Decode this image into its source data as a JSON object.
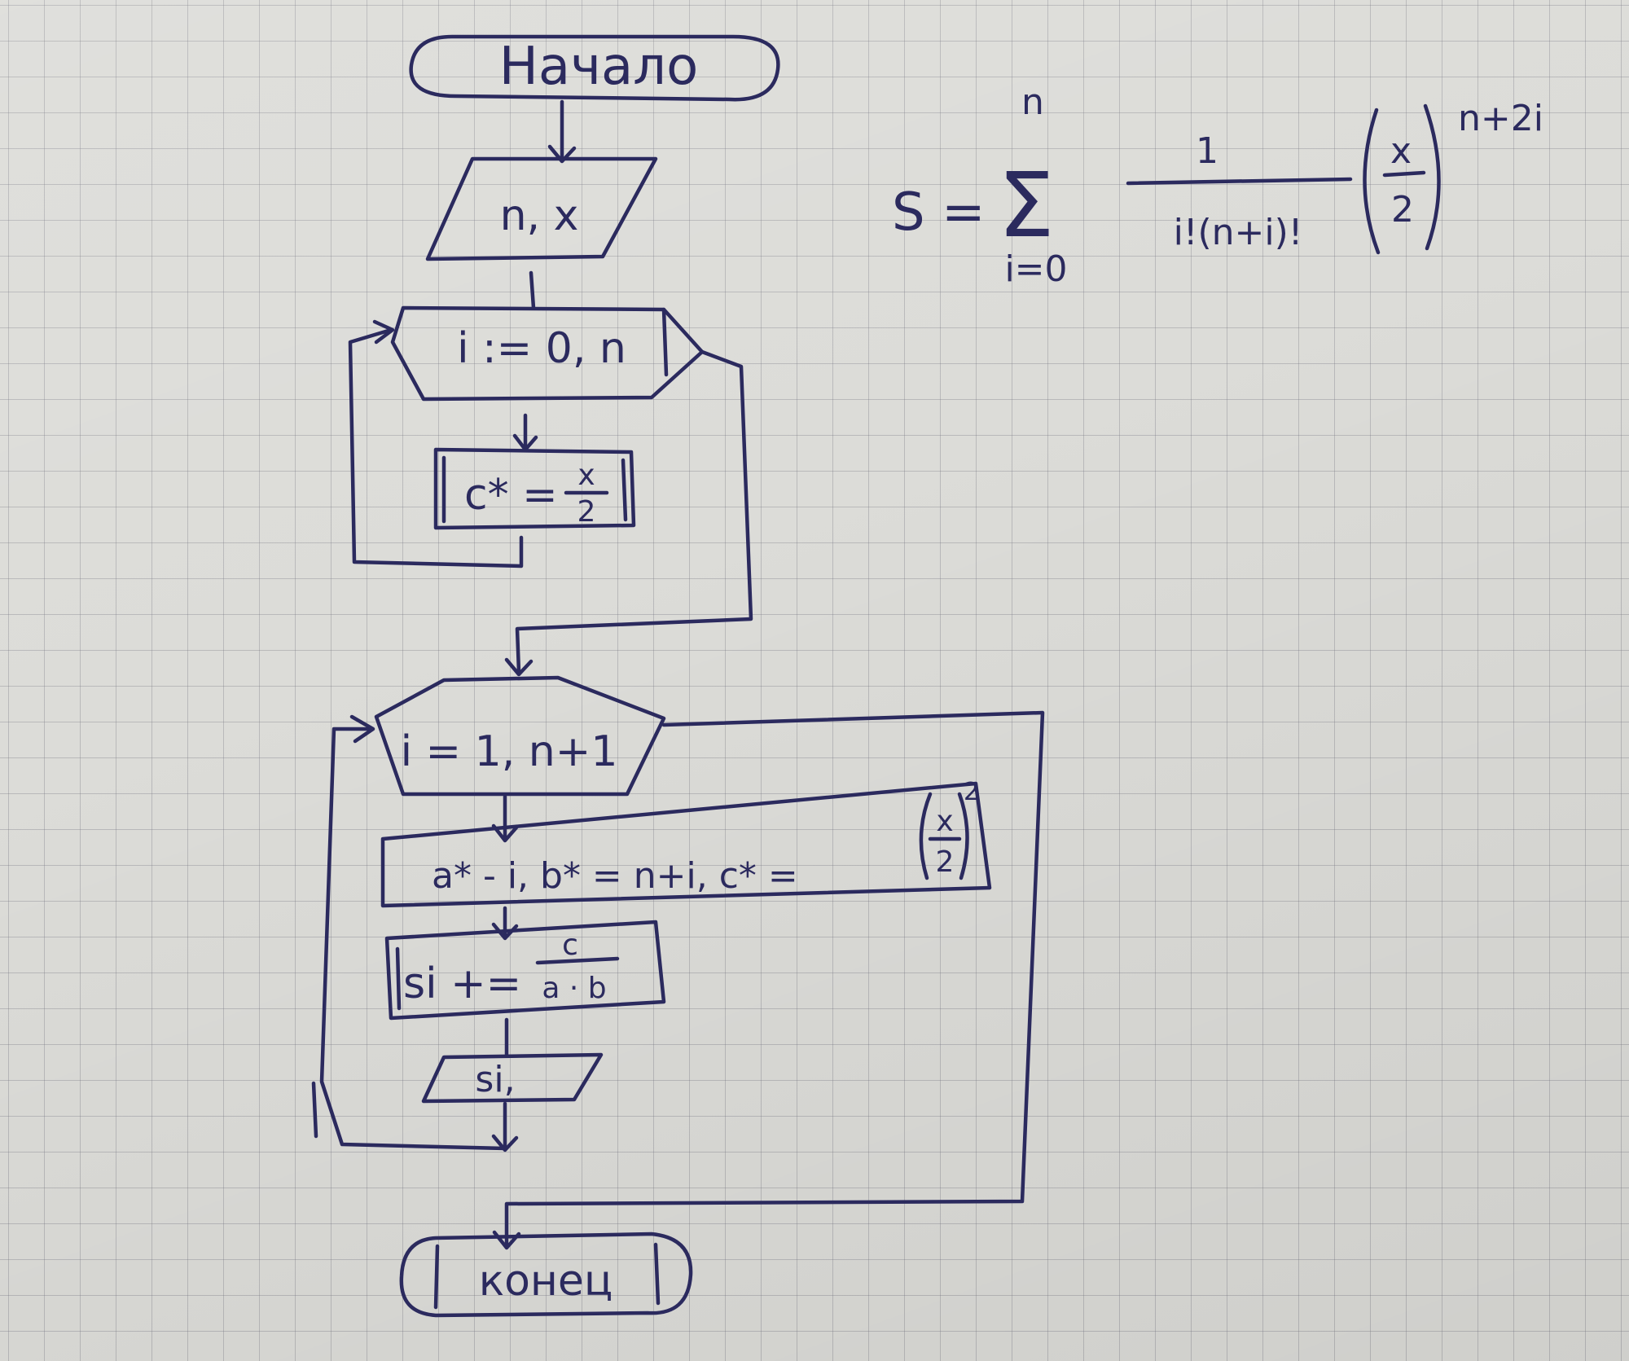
{
  "title": "Block-scheme (flowchart) sketch on grid paper",
  "colors": {
    "ink": "#2b2a5e",
    "paper": "#dcdcd8",
    "grid": "#787882"
  },
  "flowchart": {
    "start": "Начало",
    "input": "n, x",
    "loop1": "i := 0, n",
    "assign1": {
      "lhs": "c* = ",
      "frac_num": "x",
      "frac_den": "2"
    },
    "loop2": "i = 1, n+1",
    "assign2": {
      "text": "a* - i, b* = n+i, c* = ",
      "frac_num": "x",
      "frac_den": "2",
      "power": "2"
    },
    "accum": {
      "lhs": "si += ",
      "frac_num": "c",
      "frac_den": "a · b"
    },
    "output": "si,",
    "end": "конец"
  },
  "formula": {
    "lhs": "S =",
    "sum_symbol": "Σ",
    "upper": "n",
    "lower": "i=0",
    "frac_num": "1",
    "frac_den": "i!(n+i)!",
    "paren_num": "x",
    "paren_den": "2",
    "exponent": "n+2i"
  }
}
